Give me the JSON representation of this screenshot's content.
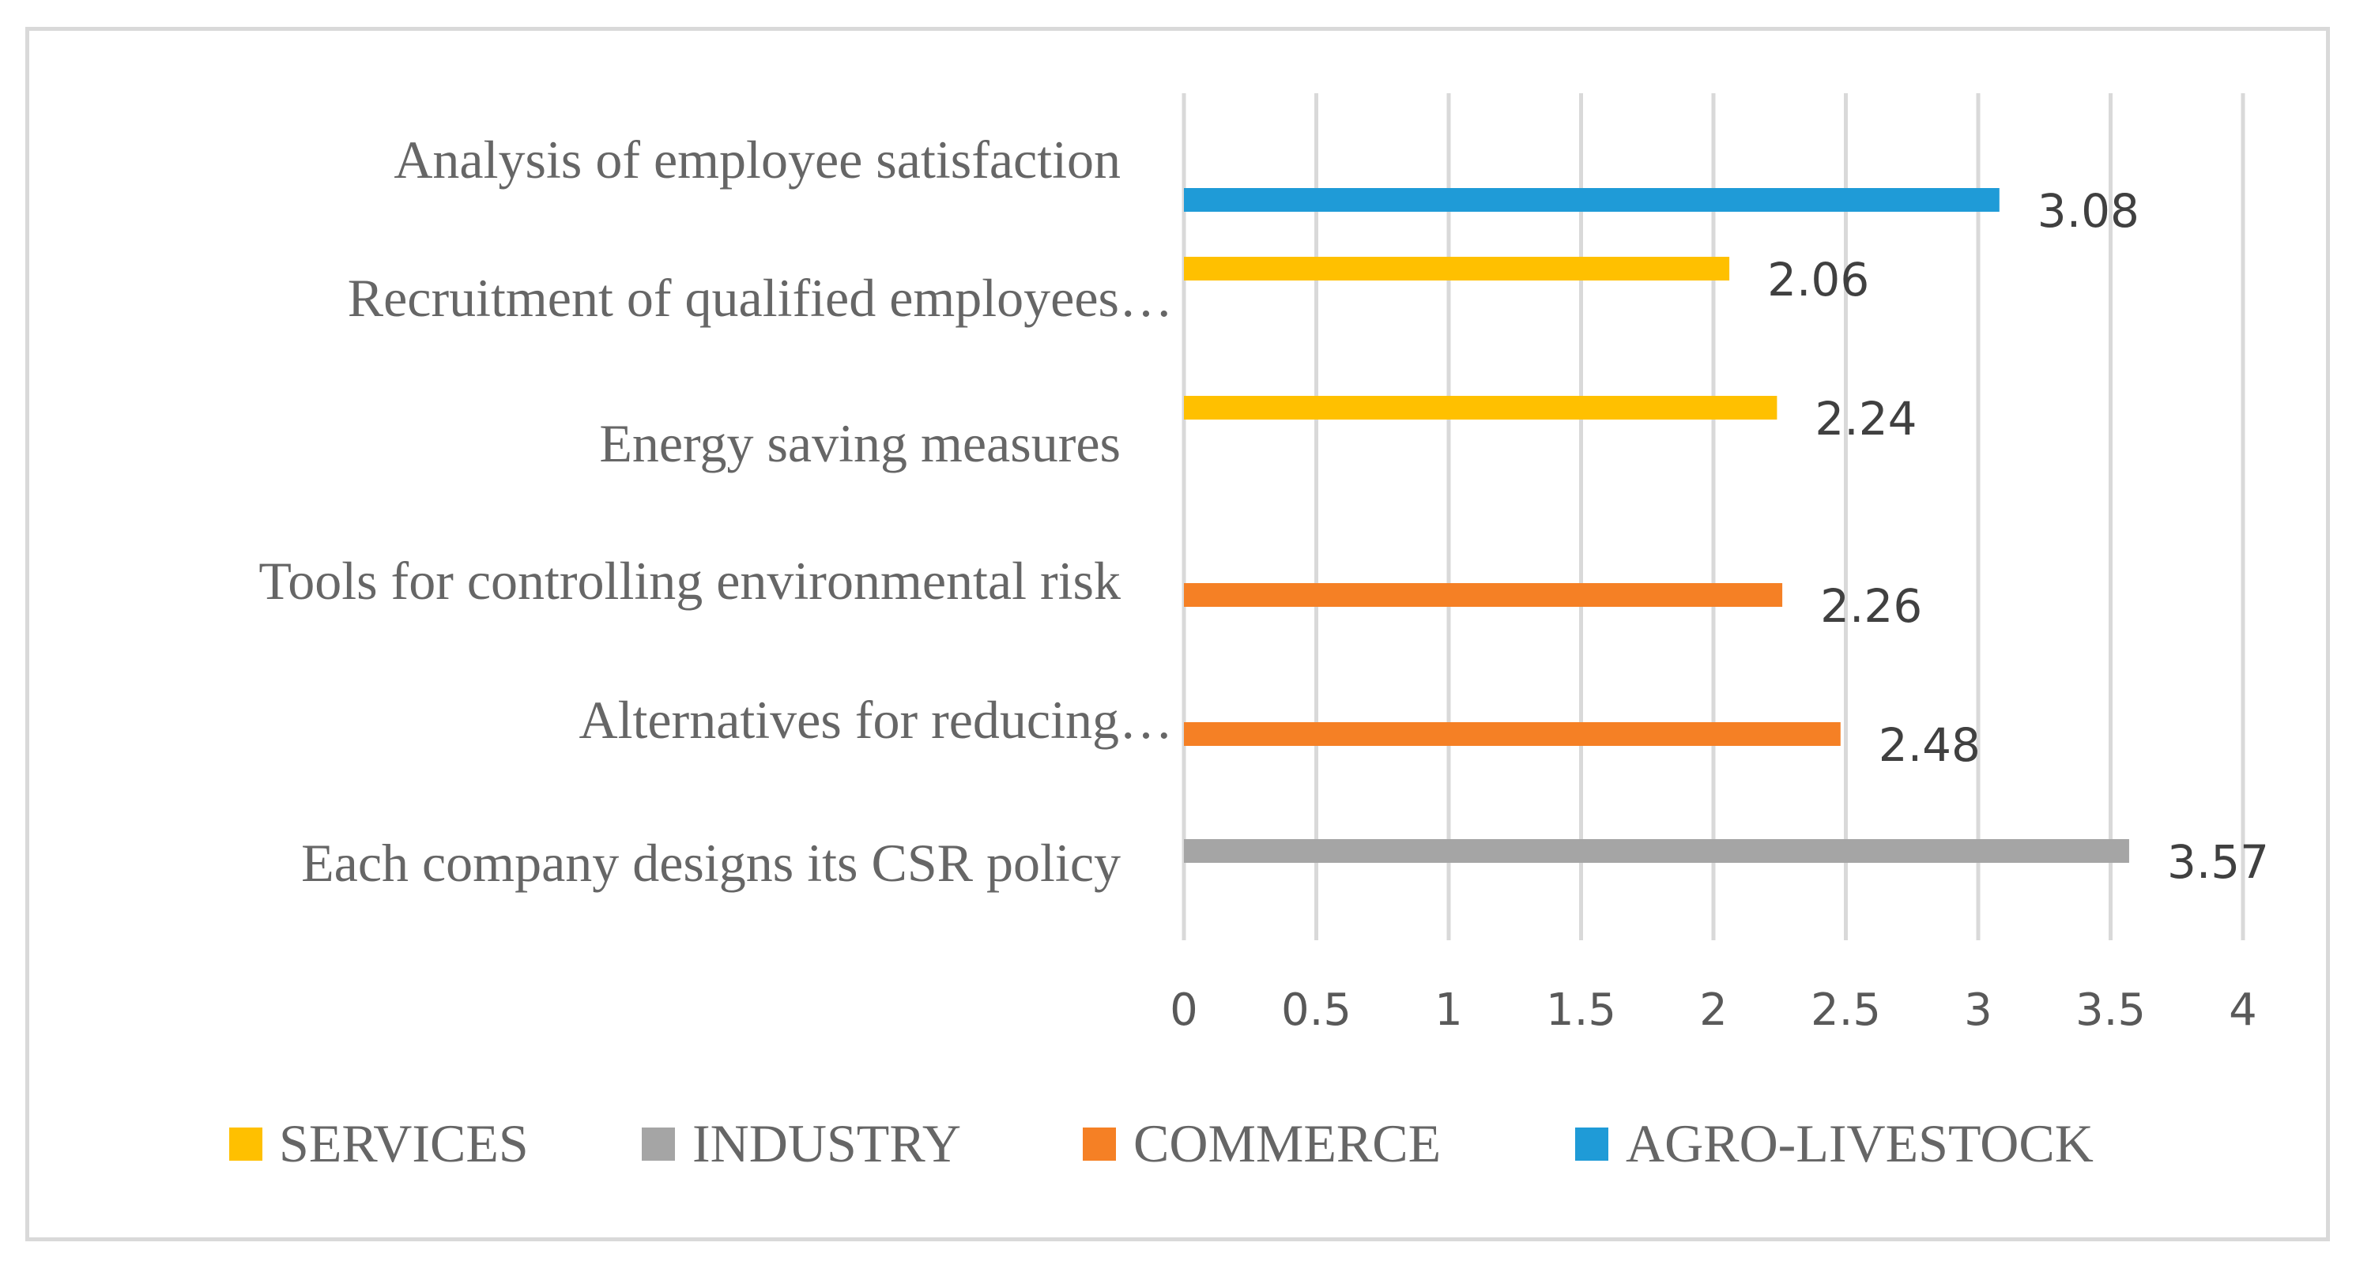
{
  "chart_data": {
    "type": "bar",
    "orientation": "horizontal",
    "title": "",
    "xlabel": "",
    "ylabel": "",
    "xlim": [
      0,
      4
    ],
    "x_ticks": [
      "0",
      "0.5",
      "1",
      "1.5",
      "2",
      "2.5",
      "3",
      "3.5",
      "4"
    ],
    "grid": "vertical",
    "legend_position": "bottom",
    "categories": [
      "Analysis of employee satisfaction",
      "Recruitment of qualified employees…",
      "Energy saving measures",
      "Tools for controlling environmental risk",
      "Alternatives for reducing…",
      "Each company designs its CSR policy"
    ],
    "series": [
      {
        "name": "SERVICES",
        "color": "#FFC000",
        "values": [
          null,
          2.06,
          2.24,
          null,
          null,
          null
        ]
      },
      {
        "name": "INDUSTRY",
        "color": "#A5A5A5",
        "values": [
          null,
          null,
          null,
          null,
          null,
          3.57
        ]
      },
      {
        "name": "COMMERCE",
        "color": "#F58025",
        "values": [
          null,
          null,
          null,
          2.26,
          2.48,
          null
        ]
      },
      {
        "name": "AGRO-LIVESTOCK",
        "color": "#1F9BD7",
        "values": [
          3.08,
          null,
          null,
          null,
          null,
          null
        ]
      }
    ],
    "data_labels": [
      "3.08",
      "2.06",
      "2.24",
      "2.26",
      "2.48",
      "3.57"
    ]
  }
}
